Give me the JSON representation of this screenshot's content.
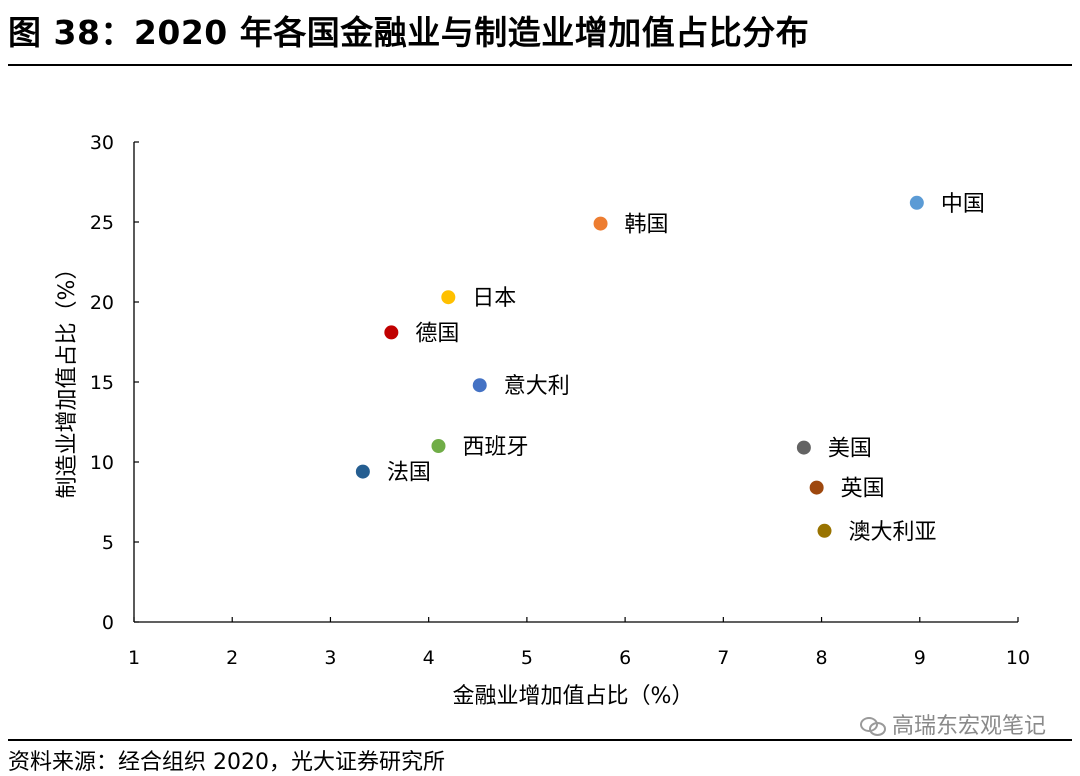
{
  "title": "图 38：2020 年各国金融业与制造业增加值占比分布",
  "source": "资料来源：经合组织 2020，光大证券研究所",
  "watermark": "高瑞东宏观笔记",
  "chart_data": {
    "type": "scatter",
    "xlabel": "金融业增加值占比（%）",
    "ylabel": "制造业增加值占比（%）",
    "xlim": [
      1,
      10
    ],
    "ylim": [
      0,
      30
    ],
    "xticks": [
      1,
      2,
      3,
      4,
      5,
      6,
      7,
      8,
      9,
      10
    ],
    "yticks": [
      0,
      5,
      10,
      15,
      20,
      25,
      30
    ],
    "grid": false,
    "points": [
      {
        "label": "中国",
        "x": 8.97,
        "y": 26.2,
        "color": "#5b9bd5"
      },
      {
        "label": "韩国",
        "x": 5.75,
        "y": 24.9,
        "color": "#ed7d31"
      },
      {
        "label": "日本",
        "x": 4.2,
        "y": 20.3,
        "color": "#ffc000"
      },
      {
        "label": "德国",
        "x": 3.62,
        "y": 18.1,
        "color": "#c00000"
      },
      {
        "label": "意大利",
        "x": 4.52,
        "y": 14.8,
        "color": "#4472c4"
      },
      {
        "label": "西班牙",
        "x": 4.1,
        "y": 11.0,
        "color": "#70ad47"
      },
      {
        "label": "法国",
        "x": 3.33,
        "y": 9.4,
        "color": "#255e91"
      },
      {
        "label": "美国",
        "x": 7.82,
        "y": 10.9,
        "color": "#636363"
      },
      {
        "label": "英国",
        "x": 7.95,
        "y": 8.4,
        "color": "#9e480e"
      },
      {
        "label": "澳大利亚",
        "x": 8.03,
        "y": 5.7,
        "color": "#997300"
      }
    ]
  }
}
